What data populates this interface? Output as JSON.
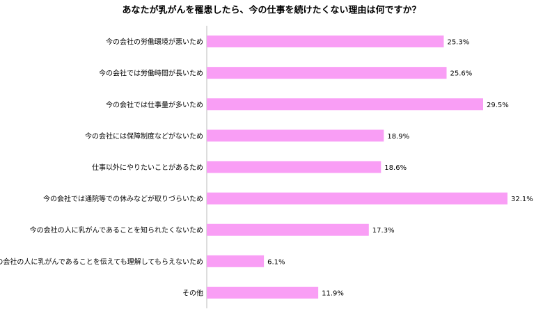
{
  "chart_data": {
    "type": "bar",
    "orientation": "horizontal",
    "title": "あなたが乳がんを罹患したら、今の仕事を続けたくない理由は何ですか？",
    "categories": [
      "今の会社の労働環境が悪いため",
      "今の会社では労働時間が長いため",
      "今の会社では仕事量が多いため",
      "今の会社には保障制度などがないため",
      "仕事以外にやりたいことがあるため",
      "今の会社では通院等での休みなどが取りづらいため",
      "今の会社の人に乳がんであることを知られたくないため",
      "今の会社の人に乳がんであることを伝えても理解してもらえないため",
      "その他"
    ],
    "values": [
      25.3,
      25.6,
      29.5,
      18.9,
      18.6,
      32.1,
      17.3,
      6.1,
      11.9
    ],
    "value_labels": [
      "25.3%",
      "25.6%",
      "29.5%",
      "18.9%",
      "18.6%",
      "32.1%",
      "17.3%",
      "6.1%",
      "11.9%"
    ],
    "color": "#f99ef5",
    "xlim": [
      0,
      35
    ]
  }
}
